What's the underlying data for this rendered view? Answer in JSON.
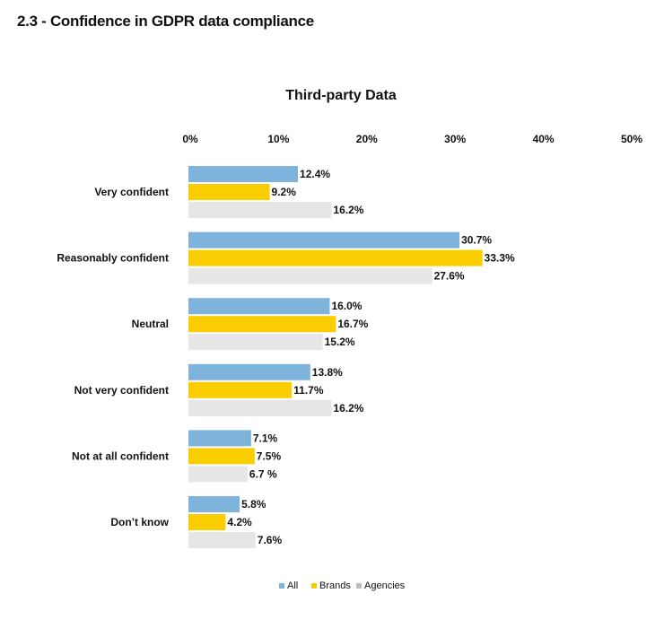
{
  "page": {
    "heading": "2.3 - Confidence in GDPR data compliance"
  },
  "colors": {
    "All": "#7eb3dc",
    "Brands": "#f9cd00",
    "Agencies": "#e6e6e6"
  },
  "chart_data": {
    "type": "bar",
    "orientation": "horizontal",
    "title": "Third-party Data",
    "xlabel": "",
    "ylabel": "",
    "xlim": [
      0,
      50
    ],
    "ticks": [
      0,
      10,
      20,
      30,
      40,
      50
    ],
    "tick_labels": [
      "0%",
      "10%",
      "20%",
      "30%",
      "40%",
      "50%"
    ],
    "tick_position": "top",
    "grid": false,
    "legend_position": "bottom-center",
    "categories": [
      "Very confident",
      "Reasonably confident",
      "Neutral",
      "Not very confident",
      "Not at all confident",
      "Don’t know"
    ],
    "series": [
      {
        "name": "All",
        "values": [
          12.4,
          30.7,
          16.0,
          13.8,
          7.1,
          5.8
        ],
        "labels": [
          "12.4%",
          "30.7%",
          "16.0%",
          "13.8%",
          "7.1%",
          "5.8%"
        ]
      },
      {
        "name": "Brands",
        "values": [
          9.2,
          33.3,
          16.7,
          11.7,
          7.5,
          4.2
        ],
        "labels": [
          "9.2%",
          "33.3%",
          "16.7%",
          "11.7%",
          "7.5%",
          "4.2%"
        ]
      },
      {
        "name": "Agencies",
        "values": [
          16.2,
          27.6,
          15.2,
          16.2,
          6.7,
          7.6
        ],
        "labels": [
          "16.2%",
          "27.6%",
          "15.2%",
          "16.2%",
          "6.7 %",
          "7.6%"
        ]
      }
    ]
  }
}
